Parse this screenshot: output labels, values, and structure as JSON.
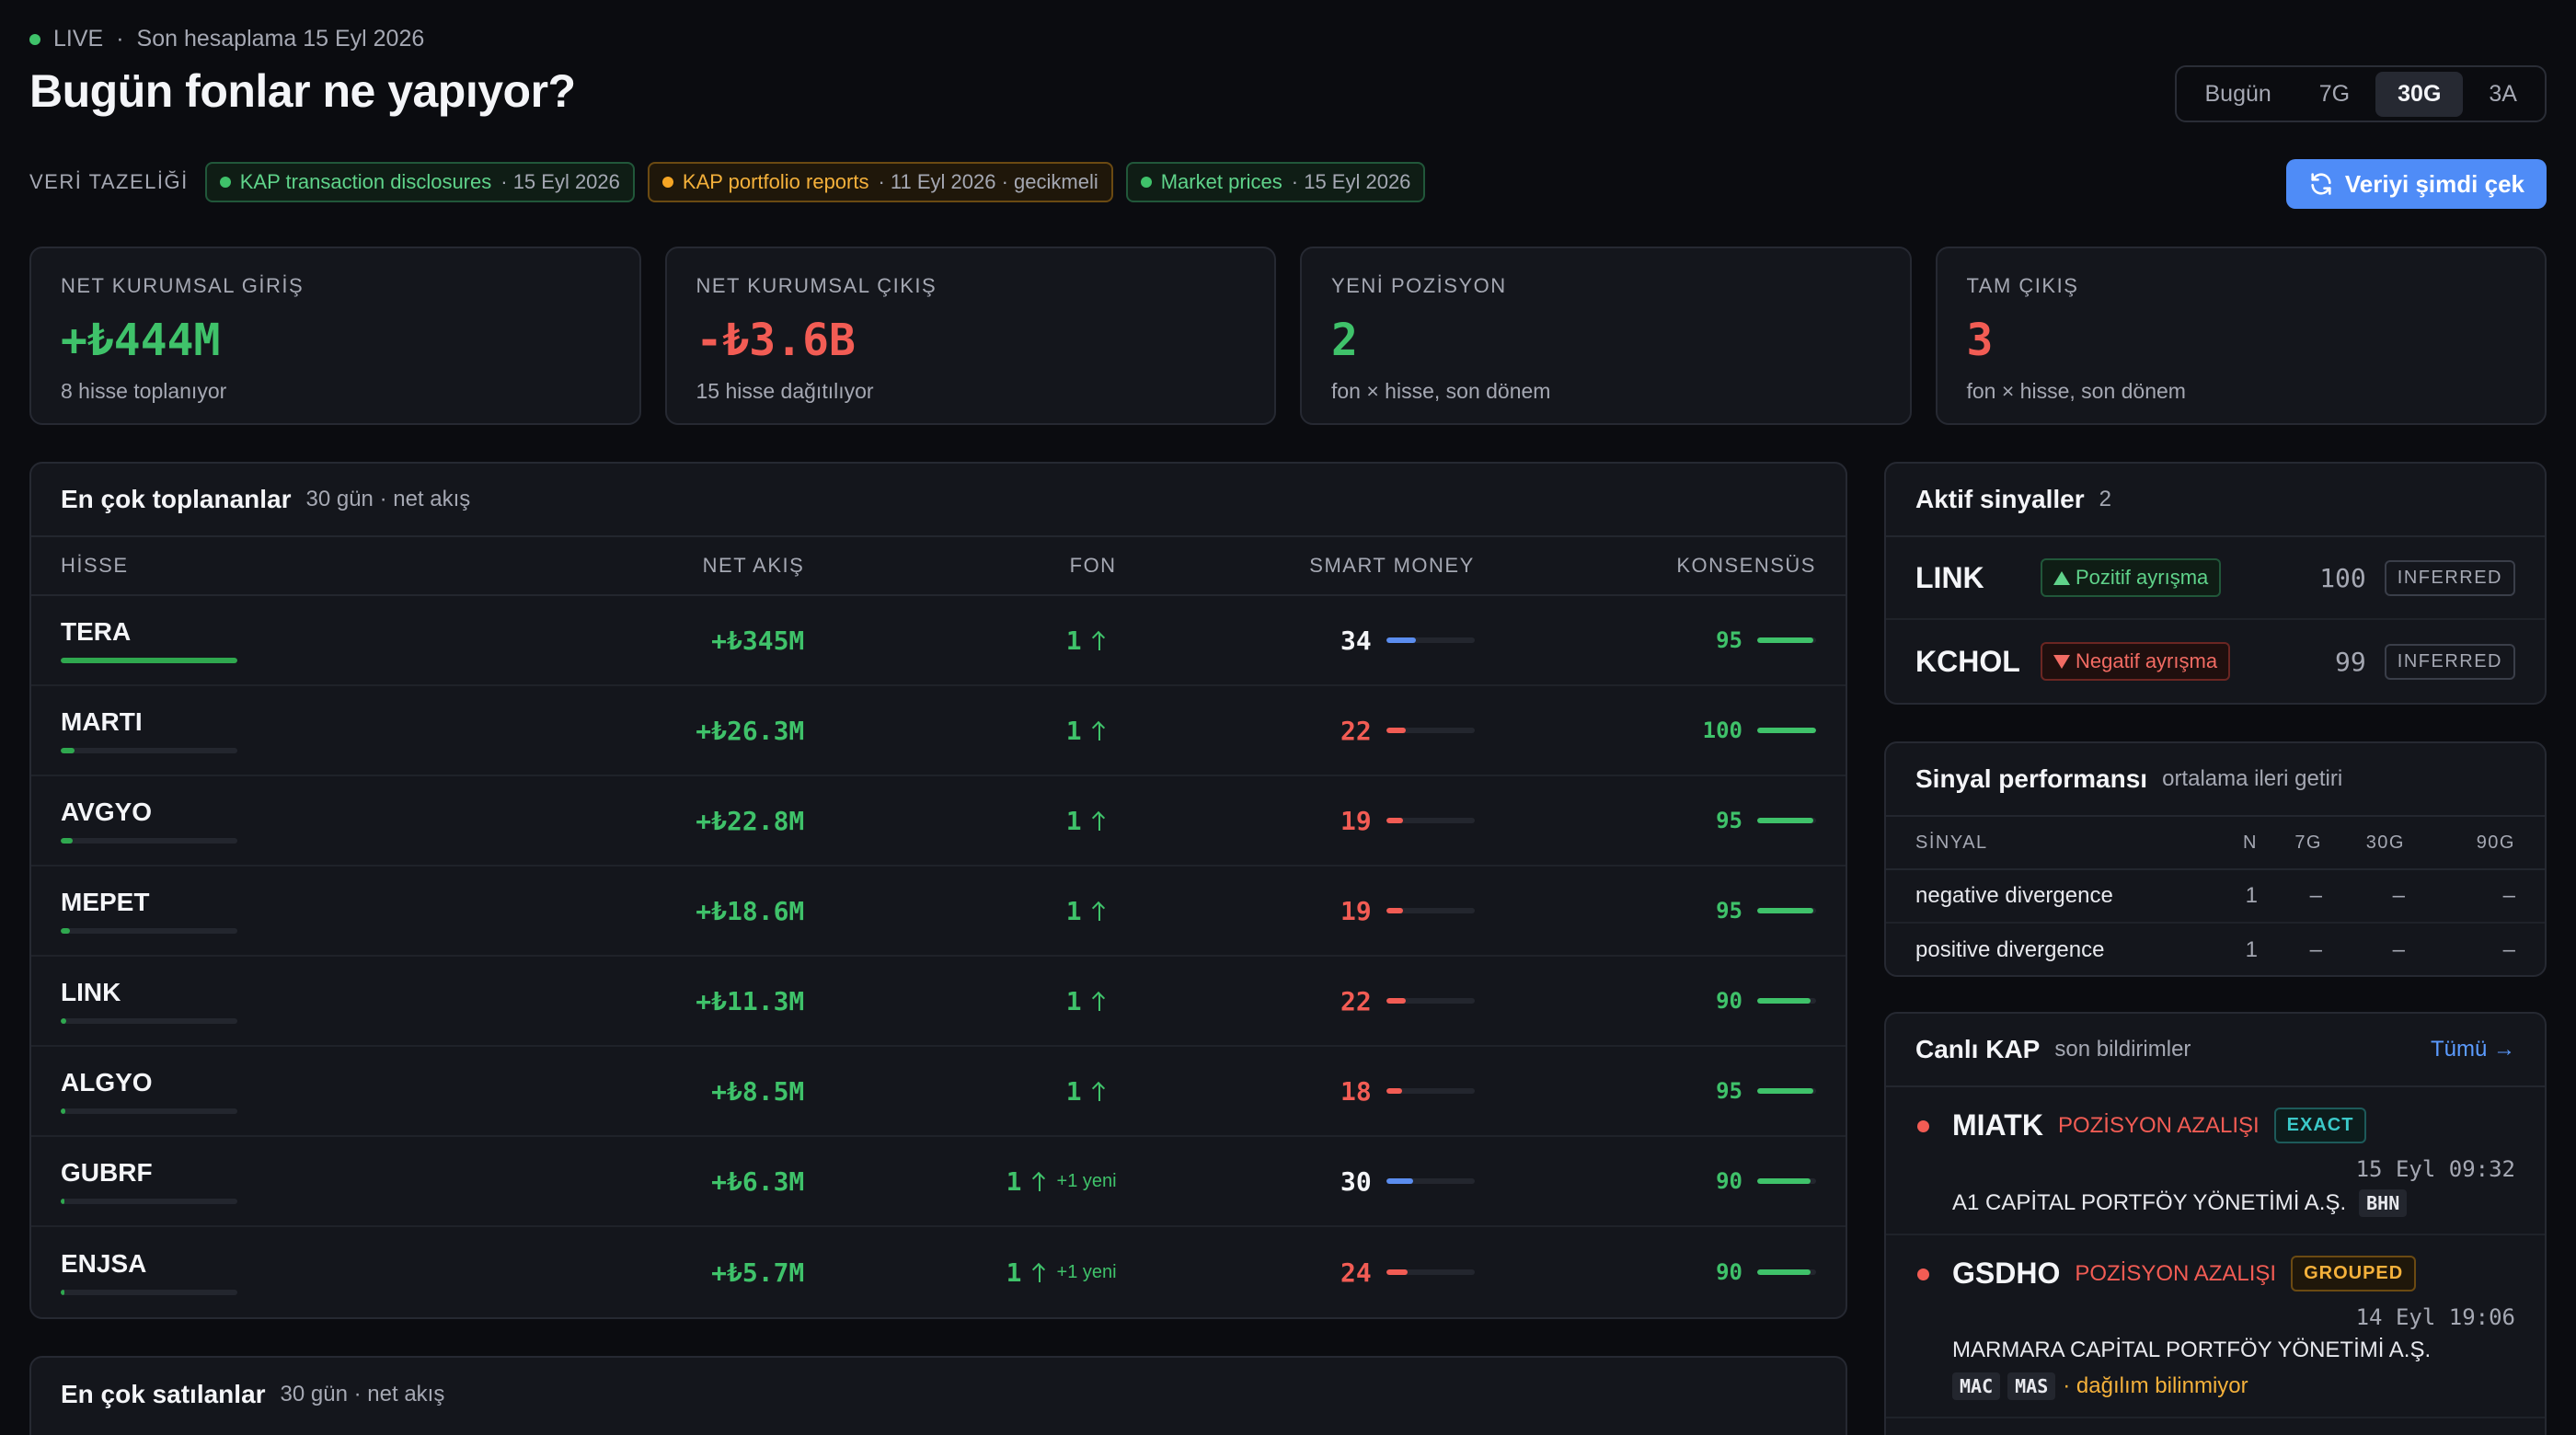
{
  "header": {
    "live_label": "LIVE",
    "separator": "·",
    "last_calc": "Son hesaplama 15 Eyl 2026",
    "title": "Bugün fonlar ne yapıyor?"
  },
  "range_tabs": [
    {
      "label": "Bugün",
      "active": false
    },
    {
      "label": "7G",
      "active": false
    },
    {
      "label": "30G",
      "active": true
    },
    {
      "label": "3A",
      "active": false
    }
  ],
  "freshness": {
    "label": "VERİ TAZELİĞİ",
    "sources": [
      {
        "name": "KAP transaction disclosures",
        "meta": "· 15 Eyl 2026",
        "status": "ok"
      },
      {
        "name": "KAP portfolio reports",
        "meta": "· 11 Eyl 2026 · gecikmeli",
        "status": "warn"
      },
      {
        "name": "Market prices",
        "meta": "· 15 Eyl 2026",
        "status": "ok"
      }
    ]
  },
  "refresh_button": "Veriyi şimdi çek",
  "kpis": [
    {
      "label": "NET KURUMSAL GİRİŞ",
      "value": "+₺444M",
      "sub": "8 hisse toplanıyor",
      "tone": "pos"
    },
    {
      "label": "NET KURUMSAL ÇIKIŞ",
      "value": "-₺3.6B",
      "sub": "15 hisse dağıtılıyor",
      "tone": "neg"
    },
    {
      "label": "YENİ POZİSYON",
      "value": "2",
      "sub": "fon × hisse, son dönem",
      "tone": "pos"
    },
    {
      "label": "TAM ÇIKIŞ",
      "value": "3",
      "sub": "fon × hisse, son dönem",
      "tone": "neg"
    }
  ],
  "top_accumulated": {
    "title": "En çok toplananlar",
    "subtitle": "30 gün · net akış",
    "columns": {
      "stock": "HİSSE",
      "flow": "NET AKIŞ",
      "fund": "FON",
      "smart": "SMART MONEY",
      "consensus": "KONSENSÜS"
    },
    "rows": [
      {
        "ticker": "TERA",
        "flow_share": 1.0,
        "flow": "+₺345M",
        "fund": "1",
        "fund_new": "",
        "smart": 34,
        "smart_tone": "high",
        "consensus": 95
      },
      {
        "ticker": "MARTI",
        "flow_share": 0.076,
        "flow": "+₺26.3M",
        "fund": "1",
        "fund_new": "",
        "smart": 22,
        "smart_tone": "low",
        "consensus": 100
      },
      {
        "ticker": "AVGYO",
        "flow_share": 0.066,
        "flow": "+₺22.8M",
        "fund": "1",
        "fund_new": "",
        "smart": 19,
        "smart_tone": "low",
        "consensus": 95
      },
      {
        "ticker": "MEPET",
        "flow_share": 0.054,
        "flow": "+₺18.6M",
        "fund": "1",
        "fund_new": "",
        "smart": 19,
        "smart_tone": "low",
        "consensus": 95
      },
      {
        "ticker": "LINK",
        "flow_share": 0.033,
        "flow": "+₺11.3M",
        "fund": "1",
        "fund_new": "",
        "smart": 22,
        "smart_tone": "low",
        "consensus": 90
      },
      {
        "ticker": "ALGYO",
        "flow_share": 0.025,
        "flow": "+₺8.5M",
        "fund": "1",
        "fund_new": "",
        "smart": 18,
        "smart_tone": "low",
        "consensus": 95
      },
      {
        "ticker": "GUBRF",
        "flow_share": 0.018,
        "flow": "+₺6.3M",
        "fund": "1",
        "fund_new": "+1 yeni",
        "smart": 30,
        "smart_tone": "high",
        "consensus": 90
      },
      {
        "ticker": "ENJSA",
        "flow_share": 0.017,
        "flow": "+₺5.7M",
        "fund": "1",
        "fund_new": "+1 yeni",
        "smart": 24,
        "smart_tone": "low",
        "consensus": 90
      }
    ]
  },
  "top_sold": {
    "title": "En çok satılanlar",
    "subtitle": "30 gün · net akış"
  },
  "active_signals": {
    "title": "Aktif sinyaller",
    "count": "2",
    "items": [
      {
        "ticker": "LINK",
        "label": "Pozitif ayrışma",
        "tone": "pos",
        "score": "100",
        "tag": "INFERRED"
      },
      {
        "ticker": "KCHOL",
        "label": "Negatif ayrışma",
        "tone": "neg",
        "score": "99",
        "tag": "INFERRED"
      }
    ]
  },
  "signal_performance": {
    "title": "Sinyal performansı",
    "subtitle": "ortalama ileri getiri",
    "columns": {
      "name": "SİNYAL",
      "n": "N",
      "d7": "7G",
      "d30": "30G",
      "d90": "90G"
    },
    "rows": [
      {
        "name": "negative divergence",
        "n": "1",
        "d7": "–",
        "d30": "–",
        "d90": "–"
      },
      {
        "name": "positive divergence",
        "n": "1",
        "d7": "–",
        "d30": "–",
        "d90": "–"
      }
    ]
  },
  "live_kap": {
    "title": "Canlı KAP",
    "subtitle": "son bildirimler",
    "all_link": "Tümü →",
    "items": [
      {
        "ticker": "MIATK",
        "type": "POZİSYON AZALIŞI",
        "badge": "EXACT",
        "badge_kind": "exact",
        "time": "15 Eyl 09:32",
        "fund": "A1 CAPİTAL PORTFÖY YÖNETİMİ A.Ş.",
        "codes": [
          "BHN"
        ],
        "note": ""
      },
      {
        "ticker": "GSDHO",
        "type": "POZİSYON AZALIŞI",
        "badge": "GROUPED",
        "badge_kind": "grouped",
        "time": "14 Eyl 19:06",
        "fund": "MARMARA CAPİTAL PORTFÖY YÖNETİMİ A.Ş.",
        "codes": [
          "MAC",
          "MAS"
        ],
        "note": "· dağılım bilinmiyor"
      }
    ]
  },
  "colors": {
    "positive": "#3fc26a",
    "negative": "#f25c54",
    "accent": "#4f8cf7",
    "warning": "#f5a524",
    "smart_high": "#5b8def"
  },
  "icons": {
    "refresh": "refresh-icon",
    "arrow_up": "arrow-up-icon",
    "triangle_up": "triangle-up-icon",
    "triangle_down": "triangle-down-icon"
  }
}
